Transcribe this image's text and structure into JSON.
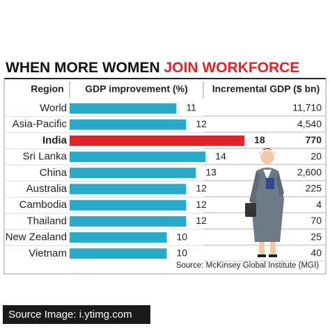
{
  "chart_data": {
    "type": "bar",
    "orientation": "horizontal",
    "title": "WHEN MORE WOMEN ",
    "title_highlight": "JOIN WORKFORCE",
    "columns": [
      "Region",
      "GDP improvement (%)",
      "Incremental GDP ($ bn)"
    ],
    "categories": [
      "World",
      "Asia-Pacific",
      "India",
      "Sri Lanka",
      "China",
      "Australia",
      "Cambodia",
      "Thailand",
      "New Zealand",
      "Vietnam"
    ],
    "values": [
      11,
      12,
      18,
      14,
      13,
      12,
      12,
      12,
      10,
      10
    ],
    "incremental_gdp": [
      "11,710",
      "4,540",
      "770",
      "20",
      "2,600",
      "225",
      "4",
      "70",
      "25",
      "40"
    ],
    "color": "#2aa9c9",
    "highlight_index": 2,
    "highlight_color": "#e32227",
    "source": "Source: McKinsey Global Institute (MGI)",
    "credit": "Source Image: i.ytimg.com"
  }
}
